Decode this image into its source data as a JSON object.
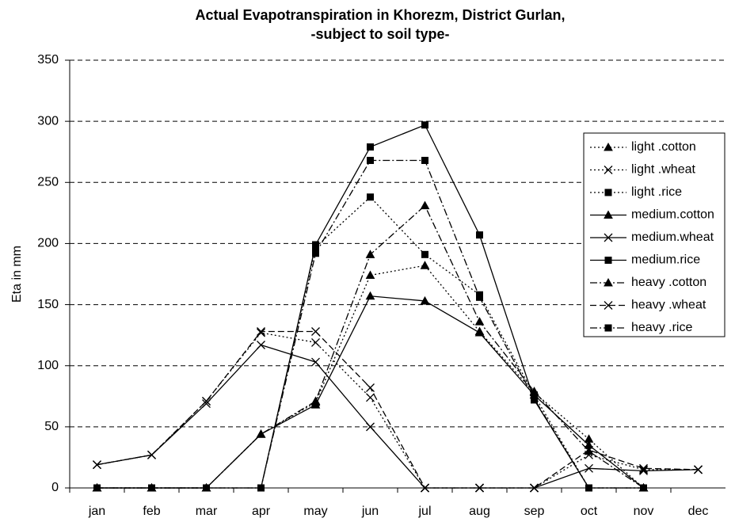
{
  "chart_data": {
    "type": "line",
    "title": [
      "Actual Evapotranspiration in Khorezm, District Gurlan,",
      "-subject to soil type-"
    ],
    "ylabel": "Eta in mm",
    "categories": [
      "jan",
      "feb",
      "mar",
      "apr",
      "may",
      "jun",
      "jul",
      "aug",
      "sep",
      "oct",
      "nov",
      "dec"
    ],
    "ylim": [
      0,
      350
    ],
    "yticks": [
      0,
      50,
      100,
      150,
      200,
      250,
      300,
      350
    ],
    "grid": true,
    "legend": "right",
    "series": [
      {
        "name": "light .cotton",
        "color": "#000000",
        "dash": "dotted",
        "marker": "triangle",
        "values": [
          0,
          0,
          0,
          44,
          70,
          174,
          182,
          128,
          78,
          40,
          0,
          null
        ]
      },
      {
        "name": "light .wheat",
        "color": "#000000",
        "dash": "dotted",
        "marker": "x",
        "values": [
          19,
          27,
          71,
          127,
          119,
          74,
          0,
          0,
          0,
          27,
          15,
          15
        ]
      },
      {
        "name": "light .rice",
        "color": "#000000",
        "dash": "dotted",
        "marker": "square",
        "values": [
          0,
          0,
          0,
          0,
          197,
          238,
          191,
          158,
          76,
          0,
          0,
          null
        ]
      },
      {
        "name": "medium.cotton",
        "color": "#000000",
        "dash": "solid",
        "marker": "triangle",
        "values": [
          0,
          0,
          0,
          44,
          68,
          157,
          153,
          127,
          76,
          35,
          0,
          null
        ]
      },
      {
        "name": "medium.wheat",
        "color": "#000000",
        "dash": "solid",
        "marker": "x",
        "values": [
          19,
          27,
          69,
          117,
          103,
          50,
          0,
          0,
          0,
          16,
          14,
          15
        ]
      },
      {
        "name": "medium.rice",
        "color": "#000000",
        "dash": "solid",
        "marker": "square",
        "values": [
          0,
          0,
          0,
          0,
          199,
          279,
          297,
          207,
          72,
          0,
          0,
          null
        ]
      },
      {
        "name": "heavy .cotton",
        "color": "#000000",
        "dash": "dashdot",
        "marker": "triangle",
        "values": [
          0,
          0,
          0,
          44,
          71,
          191,
          231,
          136,
          79,
          30,
          0,
          null
        ]
      },
      {
        "name": "heavy .wheat",
        "color": "#000000",
        "dash": "dashed",
        "marker": "x",
        "values": [
          19,
          27,
          71,
          128,
          128,
          82,
          0,
          0,
          0,
          31,
          16,
          15
        ]
      },
      {
        "name": "heavy .rice",
        "color": "#000000",
        "dash": "dashdot",
        "marker": "square",
        "values": [
          0,
          0,
          0,
          0,
          192,
          268,
          268,
          156,
          73,
          0,
          0,
          null
        ]
      }
    ]
  }
}
